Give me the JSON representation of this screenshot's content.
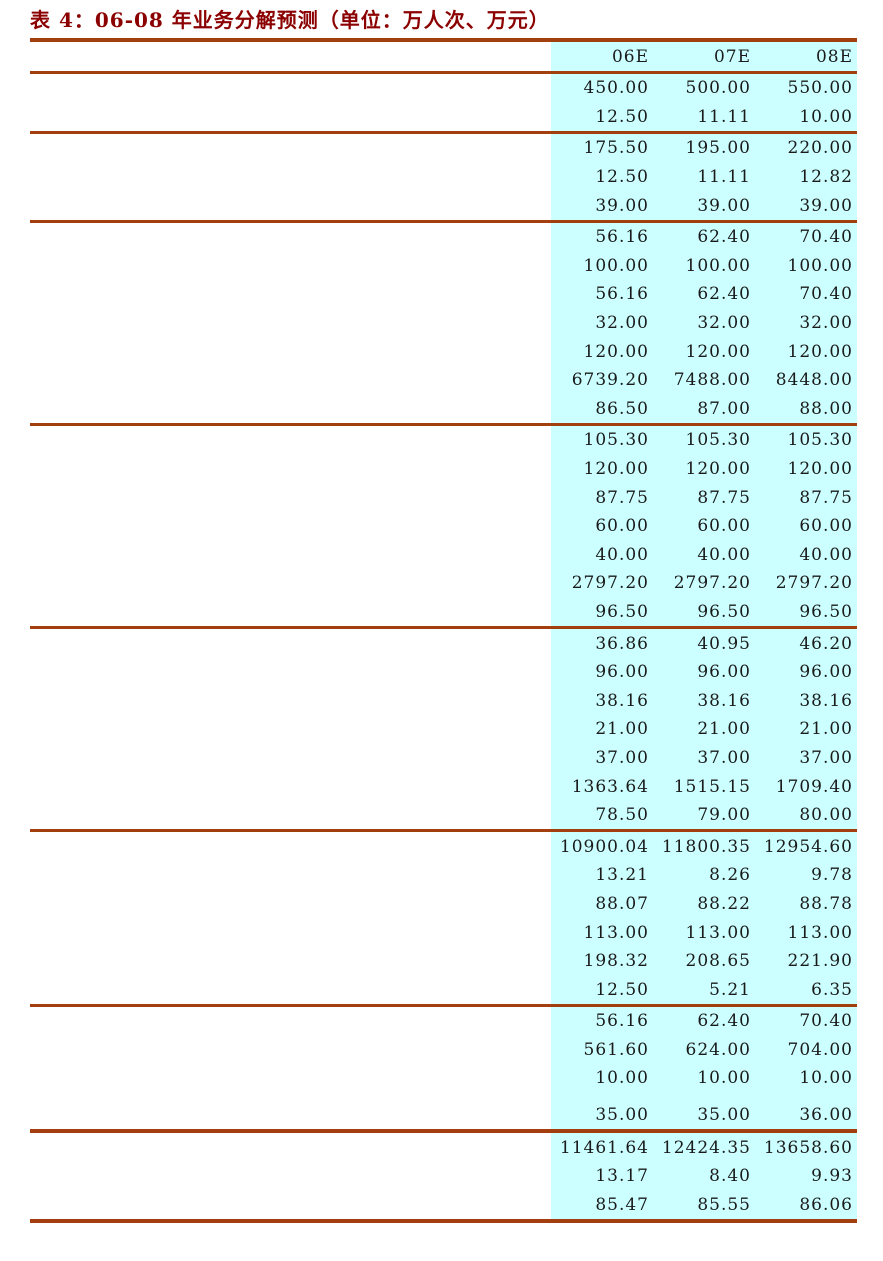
{
  "title": "表 4：06-08 年业务分解预测（单位：万人次、万元）",
  "colors": {
    "title_red": "#8B0000",
    "rule_brown": "#A33E0F",
    "values_background": "#CCFFFF",
    "value_text": "#1A1A1A",
    "page_background": "#FFFFFF"
  },
  "table": {
    "columns": [
      "06E",
      "07E",
      "08E"
    ],
    "sections": [
      {
        "rows": [
          [
            "450.00",
            "500.00",
            "550.00"
          ],
          [
            "12.50",
            "11.11",
            "10.00"
          ]
        ]
      },
      {
        "rows": [
          [
            "175.50",
            "195.00",
            "220.00"
          ],
          [
            "12.50",
            "11.11",
            "12.82"
          ],
          [
            "39.00",
            "39.00",
            "39.00"
          ]
        ]
      },
      {
        "rows": [
          [
            "56.16",
            "62.40",
            "70.40"
          ],
          [
            "100.00",
            "100.00",
            "100.00"
          ],
          [
            "56.16",
            "62.40",
            "70.40"
          ],
          [
            "32.00",
            "32.00",
            "32.00"
          ],
          [
            "120.00",
            "120.00",
            "120.00"
          ],
          [
            "6739.20",
            "7488.00",
            "8448.00"
          ],
          [
            "86.50",
            "87.00",
            "88.00"
          ]
        ]
      },
      {
        "rows": [
          [
            "105.30",
            "105.30",
            "105.30"
          ],
          [
            "120.00",
            "120.00",
            "120.00"
          ],
          [
            "87.75",
            "87.75",
            "87.75"
          ],
          [
            "60.00",
            "60.00",
            "60.00"
          ],
          [
            "40.00",
            "40.00",
            "40.00"
          ],
          [
            "2797.20",
            "2797.20",
            "2797.20"
          ],
          [
            "96.50",
            "96.50",
            "96.50"
          ]
        ]
      },
      {
        "rows": [
          [
            "36.86",
            "40.95",
            "46.20"
          ],
          [
            "96.00",
            "96.00",
            "96.00"
          ],
          [
            "38.16",
            "38.16",
            "38.16"
          ],
          [
            "21.00",
            "21.00",
            "21.00"
          ],
          [
            "37.00",
            "37.00",
            "37.00"
          ],
          [
            "1363.64",
            "1515.15",
            "1709.40"
          ],
          [
            "78.50",
            "79.00",
            "80.00"
          ]
        ]
      },
      {
        "rows": [
          [
            "10900.04",
            "11800.35",
            "12954.60"
          ],
          [
            "13.21",
            "8.26",
            "9.78"
          ],
          [
            "88.07",
            "88.22",
            "88.78"
          ],
          [
            "113.00",
            "113.00",
            "113.00"
          ],
          [
            "198.32",
            "208.65",
            "221.90"
          ],
          [
            "12.50",
            "5.21",
            "6.35"
          ]
        ]
      },
      {
        "last_row_gap": true,
        "rows": [
          [
            "56.16",
            "62.40",
            "70.40"
          ],
          [
            "561.60",
            "624.00",
            "704.00"
          ],
          [
            "10.00",
            "10.00",
            "10.00"
          ],
          [
            "35.00",
            "35.00",
            "36.00"
          ]
        ]
      },
      {
        "rows": [
          [
            "11461.64",
            "12424.35",
            "13658.60"
          ],
          [
            "13.17",
            "8.40",
            "9.93"
          ],
          [
            "85.47",
            "85.55",
            "86.06"
          ]
        ]
      }
    ]
  }
}
